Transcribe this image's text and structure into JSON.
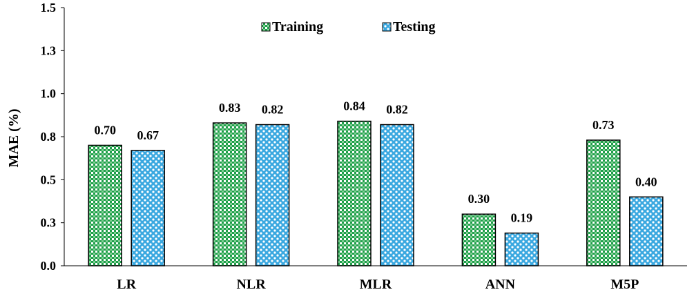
{
  "chart_data": {
    "type": "bar",
    "title": "",
    "xlabel": "",
    "ylabel": "MAE (%)",
    "ylim": [
      0,
      1.5
    ],
    "yticks": [
      0.0,
      0.25,
      0.5,
      0.75,
      1.0,
      1.25,
      1.5
    ],
    "ytick_labels": [
      "0.0",
      "0.3",
      "0.5",
      "0.8",
      "1.0",
      "1.3",
      "1.5"
    ],
    "categories": [
      "LR",
      "NLR",
      "MLR",
      "ANN",
      "M5P"
    ],
    "series": [
      {
        "name": "Training",
        "values": [
          0.7,
          0.83,
          0.84,
          0.3,
          0.73
        ],
        "labels": [
          "0.70",
          "0.83",
          "0.84",
          "0.30",
          "0.73"
        ],
        "color": "#1f9e4a",
        "pattern": "checker"
      },
      {
        "name": "Testing",
        "values": [
          0.67,
          0.82,
          0.82,
          0.19,
          0.4
        ],
        "labels": [
          "0.67",
          "0.82",
          "0.82",
          "0.19",
          "0.40"
        ],
        "color": "#3aa8e0",
        "pattern": "dots"
      }
    ],
    "legend": {
      "position": "top-center"
    },
    "grid": false
  }
}
